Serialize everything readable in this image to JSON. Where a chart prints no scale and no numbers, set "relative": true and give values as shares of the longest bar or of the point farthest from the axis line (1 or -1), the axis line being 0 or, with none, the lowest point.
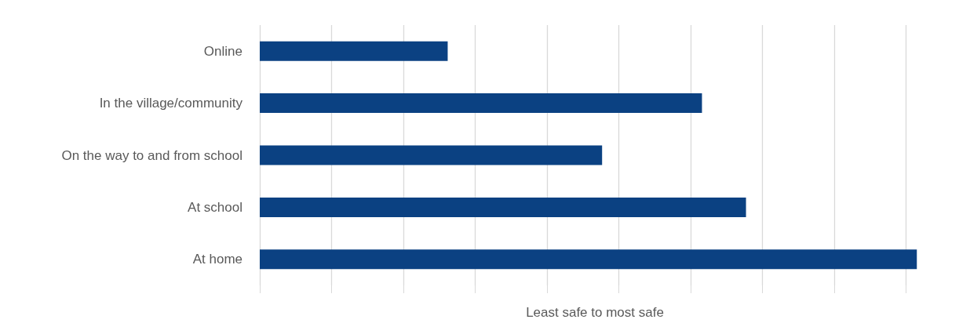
{
  "chart_data": {
    "type": "bar",
    "orientation": "horizontal",
    "relative": true,
    "xlabel": "Least safe to most safe",
    "categories": [
      "Online",
      "In the village/community",
      "On the way to and from school",
      "At school",
      "At home"
    ],
    "values": [
      0.286,
      0.673,
      0.521,
      0.74,
      1
    ],
    "color": "#0b4182",
    "grid": "x"
  }
}
